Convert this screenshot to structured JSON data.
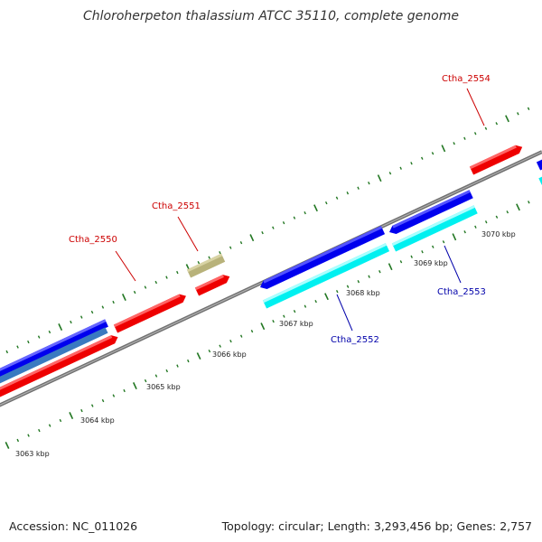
{
  "title": "Chloroherpeton thalassium ATCC 35110, complete genome",
  "accession": "Accession: NC_011026",
  "summary": "Topology: circular; Length: 3,293,456 bp; Genes: 2,757",
  "colors": {
    "forward_cds": "#ff0000",
    "forward_other": "#b8b27a",
    "reverse_cds": "#0000ee",
    "reverse_cds_lower": "#00ffff",
    "reverse_label": "#0000aa",
    "forward_label": "#cc0000",
    "backbone": "#808080",
    "ticks": "#227722"
  },
  "scale_labels": [
    "3063 kbp",
    "3064 kbp",
    "3065 kbp",
    "3066 kbp",
    "3067 kbp",
    "3068 kbp",
    "3069 kbp",
    "3070 kbp"
  ],
  "gene_labels": {
    "g2550": "Ctha_2550",
    "g2551": "Ctha_2551",
    "g2552": "Ctha_2552",
    "g2553": "Ctha_2553",
    "g2554": "Ctha_2554"
  }
}
